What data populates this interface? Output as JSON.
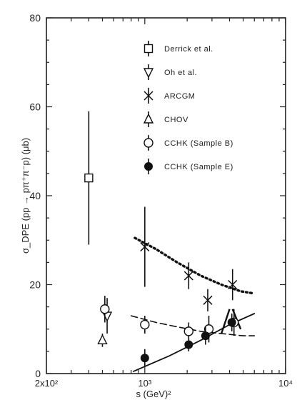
{
  "chart_data": {
    "type": "scatter",
    "title": "",
    "xlabel": "s (GeV)²",
    "ylabel": "σ_DPE (pp → pπ⁺π⁻p) (μb)",
    "x_scale": "log",
    "xlim": [
      200,
      10000
    ],
    "ylim": [
      0,
      80
    ],
    "y_ticks": [
      0,
      20,
      40,
      60,
      80
    ],
    "y_tick_labels": [
      "0",
      "20",
      "40",
      "60",
      "80"
    ],
    "x_tick_labels": [
      {
        "value": 200,
        "label": "2x10²"
      },
      {
        "value": 1000,
        "label": "10³"
      },
      {
        "value": 10000,
        "label": "10⁴"
      }
    ],
    "legend_position": "top-center",
    "series": [
      {
        "name": "Derrick et al.",
        "marker": "open-square",
        "points": [
          {
            "x": 400,
            "y": 44,
            "err": 15
          }
        ]
      },
      {
        "name": "Oh et al.",
        "marker": "open-triangle-down",
        "points": [
          {
            "x": 540,
            "y": 13,
            "err": 4
          }
        ]
      },
      {
        "name": "ARCGM",
        "marker": "cross",
        "points": [
          {
            "x": 1000,
            "y": 28.5,
            "err": 9
          },
          {
            "x": 2050,
            "y": 22,
            "err": 3
          },
          {
            "x": 2800,
            "y": 16.5,
            "err": 2.5
          },
          {
            "x": 4200,
            "y": 20,
            "err": 3.5
          }
        ]
      },
      {
        "name": "CHOV",
        "marker": "open-triangle-up",
        "points": [
          {
            "x": 500,
            "y": 7.5,
            "err": 1.5
          }
        ]
      },
      {
        "name": "CCHK (Sample B)",
        "marker": "open-circle",
        "points": [
          {
            "x": 520,
            "y": 14.5,
            "err": 3
          },
          {
            "x": 1000,
            "y": 11,
            "err": 2
          },
          {
            "x": 2050,
            "y": 9.5,
            "err": 2
          },
          {
            "x": 2850,
            "y": 10,
            "err": 3
          },
          {
            "x": 4300,
            "y": 11.5,
            "err": 3
          }
        ]
      },
      {
        "name": "CCHK (Sample E)",
        "marker": "filled-circle",
        "points": [
          {
            "x": 1000,
            "y": 3.5,
            "err": 2
          },
          {
            "x": 2050,
            "y": 6.5,
            "err": 1.5
          },
          {
            "x": 2700,
            "y": 8.5,
            "err": 2
          },
          {
            "x": 4150,
            "y": 11.5,
            "err": 2
          }
        ]
      }
    ],
    "curves": [
      {
        "style": "dotted",
        "points": [
          [
            850,
            30.5
          ],
          [
            1200,
            28
          ],
          [
            1700,
            25
          ],
          [
            2500,
            22
          ],
          [
            3500,
            20
          ],
          [
            4800,
            18.5
          ],
          [
            6000,
            18
          ]
        ]
      },
      {
        "style": "dashed",
        "points": [
          [
            800,
            13
          ],
          [
            1200,
            11.5
          ],
          [
            1700,
            10.5
          ],
          [
            2500,
            9.5
          ],
          [
            3500,
            9
          ],
          [
            5000,
            8.5
          ],
          [
            6000,
            8.5
          ]
        ]
      },
      {
        "style": "solid",
        "points": [
          [
            830,
            0.5
          ],
          [
            1500,
            4
          ],
          [
            2500,
            7.5
          ],
          [
            4000,
            11
          ],
          [
            6000,
            13.5
          ]
        ]
      }
    ],
    "annotation_lines": [
      {
        "points": [
          [
            3500,
            9
          ],
          [
            4000,
            14.5
          ]
        ]
      },
      {
        "points": [
          [
            4200,
            14.5
          ],
          [
            4800,
            10
          ]
        ]
      }
    ]
  }
}
